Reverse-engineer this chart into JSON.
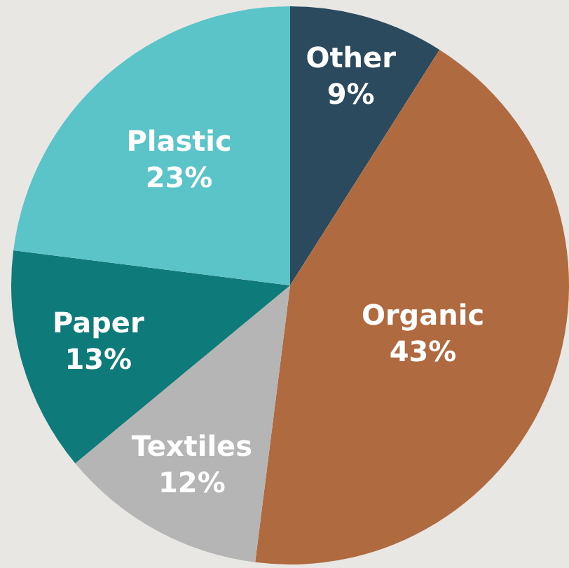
{
  "chart_data": {
    "type": "pie",
    "categories": [
      "Other",
      "Organic",
      "Textiles",
      "Paper",
      "Plastic"
    ],
    "values": [
      9,
      43,
      12,
      13,
      23
    ],
    "value_labels": [
      "9%",
      "43%",
      "12%",
      "13%",
      "23%"
    ],
    "colors": [
      "#2b4a5e",
      "#b06a40",
      "#b5b5b5",
      "#0e7a7a",
      "#5bc4c8"
    ],
    "legend": false
  }
}
